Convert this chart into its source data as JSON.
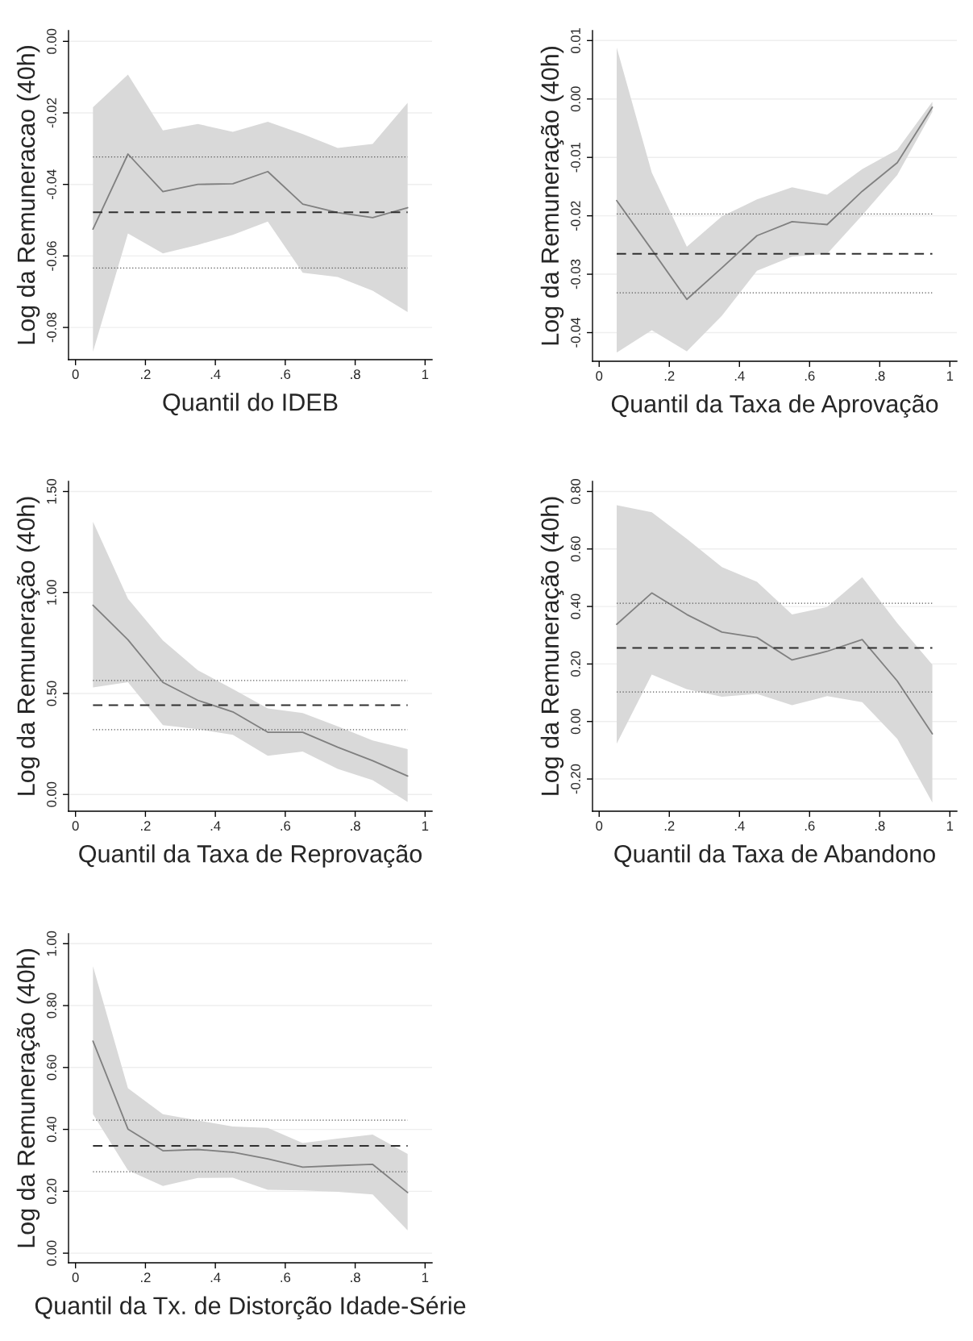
{
  "chart_data": [
    {
      "type": "line",
      "xlabel": "Quantil do IDEB",
      "ylabel": "Log da Remuneracao (40h)",
      "grid": "y",
      "marker": "none",
      "line_style": "solid",
      "x": [
        0.05,
        0.15,
        0.25,
        0.35,
        0.45,
        0.55,
        0.65,
        0.75,
        0.85,
        0.95
      ],
      "series": [
        {
          "color": "#808080",
          "values": [
            -0.0525,
            -0.0315,
            -0.042,
            -0.04,
            -0.0398,
            -0.0364,
            -0.0455,
            -0.0479,
            -0.0493,
            -0.0465
          ],
          "upper": [
            -0.0184,
            -0.0093,
            -0.0249,
            -0.0231,
            -0.0253,
            -0.0225,
            -0.0259,
            -0.0298,
            -0.0287,
            -0.0172
          ],
          "lower": [
            -0.0868,
            -0.0537,
            -0.0593,
            -0.0569,
            -0.0541,
            -0.0504,
            -0.0647,
            -0.0659,
            -0.0697,
            -0.0757
          ]
        }
      ],
      "xlim": [
        -0.02,
        1.02
      ],
      "ylim": [
        -0.089,
        0.003
      ],
      "xticks": [
        0,
        {
          "value": 0.2,
          "label": ".2"
        },
        {
          "value": 0.4,
          "label": ".4"
        },
        {
          "value": 0.6,
          "label": ".6"
        },
        {
          "value": 0.8,
          "label": ".8"
        },
        1
      ],
      "yticks": [
        {
          "value": -0.08,
          "label": "-0.08"
        },
        {
          "value": -0.06,
          "label": "-0.06"
        },
        {
          "value": -0.04,
          "label": "-0.04"
        },
        {
          "value": -0.02,
          "label": "-0.02"
        },
        {
          "value": 0,
          "label": "0.00"
        }
      ],
      "ref_lines": [
        {
          "axis": "y",
          "value": -0.0478,
          "color": "#303030",
          "line_style": "dashed"
        },
        {
          "axis": "y",
          "value": -0.0323,
          "color": "#555555",
          "line_style": "dotted"
        },
        {
          "axis": "y",
          "value": -0.0634,
          "color": "#555555",
          "line_style": "dotted"
        }
      ]
    },
    {
      "type": "line",
      "xlabel": "Quantil da Taxa de Aprovação",
      "ylabel": "Log da Remuneração (40h)",
      "grid": "y",
      "marker": "none",
      "line_style": "solid",
      "x": [
        0.05,
        0.15,
        0.25,
        0.35,
        0.45,
        0.55,
        0.65,
        0.75,
        0.85,
        0.95
      ],
      "series": [
        {
          "color": "#808080",
          "values": [
            -0.0174,
            -0.0258,
            -0.0343,
            -0.0289,
            -0.0234,
            -0.021,
            -0.0215,
            -0.0158,
            -0.0109,
            -0.0014
          ],
          "upper": [
            0.0088,
            -0.0126,
            -0.0253,
            -0.0201,
            -0.0172,
            -0.0151,
            -0.0164,
            -0.012,
            -0.0087,
            -0.0005
          ],
          "lower": [
            -0.0434,
            -0.0396,
            -0.0432,
            -0.0371,
            -0.0294,
            -0.027,
            -0.0265,
            -0.0199,
            -0.013,
            -0.0022
          ]
        }
      ],
      "xlim": [
        -0.019,
        1.02
      ],
      "ylim": [
        -0.0449,
        0.0117
      ],
      "xticks": [
        0,
        {
          "value": 0.2,
          "label": ".2"
        },
        {
          "value": 0.4,
          "label": ".4"
        },
        {
          "value": 0.6,
          "label": ".6"
        },
        {
          "value": 0.8,
          "label": ".8"
        },
        1
      ],
      "yticks": [
        {
          "value": -0.04,
          "label": "-0.04"
        },
        {
          "value": -0.03,
          "label": "-0.03"
        },
        {
          "value": -0.02,
          "label": "-0.02"
        },
        {
          "value": -0.01,
          "label": "-0.01"
        },
        {
          "value": 0,
          "label": "0.00"
        },
        {
          "value": 0.01,
          "label": "0.01"
        }
      ],
      "ref_lines": [
        {
          "axis": "y",
          "value": -0.0265,
          "color": "#303030",
          "line_style": "dashed"
        },
        {
          "axis": "y",
          "value": -0.0197,
          "color": "#555555",
          "line_style": "dotted"
        },
        {
          "axis": "y",
          "value": -0.0332,
          "color": "#555555",
          "line_style": "dotted"
        }
      ]
    },
    {
      "type": "line",
      "xlabel": "Quantil da Taxa de Reprovação",
      "ylabel": "Log da Remuneração (40h)",
      "grid": "y",
      "marker": "none",
      "line_style": "solid",
      "x": [
        0.05,
        0.15,
        0.25,
        0.35,
        0.45,
        0.55,
        0.65,
        0.75,
        0.85,
        0.95
      ],
      "series": [
        {
          "color": "#808080",
          "values": [
            0.937,
            0.766,
            0.555,
            0.466,
            0.409,
            0.308,
            0.308,
            0.234,
            0.167,
            0.091
          ],
          "upper": [
            1.35,
            0.969,
            0.762,
            0.615,
            0.522,
            0.426,
            0.403,
            0.337,
            0.267,
            0.224
          ],
          "lower": [
            0.53,
            0.556,
            0.343,
            0.323,
            0.295,
            0.191,
            0.212,
            0.127,
            0.071,
            -0.037
          ]
        }
      ],
      "xlim": [
        -0.02,
        1.02
      ],
      "ylim": [
        -0.083,
        1.55
      ],
      "xticks": [
        0,
        {
          "value": 0.2,
          "label": ".2"
        },
        {
          "value": 0.4,
          "label": ".4"
        },
        {
          "value": 0.6,
          "label": ".6"
        },
        {
          "value": 0.8,
          "label": ".8"
        },
        1
      ],
      "yticks": [
        {
          "value": 0,
          "label": "0.00"
        },
        {
          "value": 0.5,
          "label": "0.50"
        },
        {
          "value": 1,
          "label": "1.00"
        },
        {
          "value": 1.5,
          "label": "1.50"
        }
      ],
      "ref_lines": [
        {
          "axis": "y",
          "value": 0.442,
          "color": "#303030",
          "line_style": "dashed"
        },
        {
          "axis": "y",
          "value": 0.564,
          "color": "#555555",
          "line_style": "dotted"
        },
        {
          "axis": "y",
          "value": 0.321,
          "color": "#555555",
          "line_style": "dotted"
        }
      ]
    },
    {
      "type": "line",
      "xlabel": "Quantil da Taxa de Abandono",
      "ylabel": "Log da Remuneração (40h)",
      "grid": "y",
      "marker": "none",
      "line_style": "solid",
      "x": [
        0.05,
        0.15,
        0.25,
        0.35,
        0.45,
        0.55,
        0.65,
        0.75,
        0.85,
        0.95
      ],
      "series": [
        {
          "color": "#808080",
          "values": [
            0.338,
            0.447,
            0.372,
            0.311,
            0.292,
            0.214,
            0.244,
            0.285,
            0.141,
            -0.043
          ],
          "upper": [
            0.752,
            0.728,
            0.635,
            0.537,
            0.486,
            0.372,
            0.398,
            0.502,
            0.342,
            0.198
          ],
          "lower": [
            -0.077,
            0.163,
            0.112,
            0.086,
            0.096,
            0.057,
            0.088,
            0.067,
            -0.06,
            -0.282
          ]
        }
      ],
      "xlim": [
        -0.019,
        1.02
      ],
      "ylim": [
        -0.312,
        0.835
      ],
      "xticks": [
        0,
        {
          "value": 0.2,
          "label": ".2"
        },
        {
          "value": 0.4,
          "label": ".4"
        },
        {
          "value": 0.6,
          "label": ".6"
        },
        {
          "value": 0.8,
          "label": ".8"
        },
        1
      ],
      "yticks": [
        {
          "value": -0.2,
          "label": "-0.20"
        },
        {
          "value": 0,
          "label": "0.00"
        },
        {
          "value": 0.2,
          "label": "0.20"
        },
        {
          "value": 0.4,
          "label": "0.40"
        },
        {
          "value": 0.6,
          "label": "0.60"
        },
        {
          "value": 0.8,
          "label": "0.80"
        }
      ],
      "ref_lines": [
        {
          "axis": "y",
          "value": 0.256,
          "color": "#303030",
          "line_style": "dashed"
        },
        {
          "axis": "y",
          "value": 0.411,
          "color": "#555555",
          "line_style": "dotted"
        },
        {
          "axis": "y",
          "value": 0.103,
          "color": "#555555",
          "line_style": "dotted"
        }
      ]
    },
    {
      "type": "line",
      "xlabel": "Quantil da Tx. de Distorção Idade-Série",
      "ylabel": "Log da Remuneração (40h)",
      "grid": "y",
      "marker": "none",
      "line_style": "solid",
      "x": [
        0.05,
        0.15,
        0.25,
        0.35,
        0.45,
        0.55,
        0.65,
        0.75,
        0.85,
        0.95
      ],
      "series": [
        {
          "color": "#808080",
          "values": [
            0.685,
            0.401,
            0.331,
            0.335,
            0.326,
            0.305,
            0.278,
            0.283,
            0.287,
            0.196
          ],
          "upper": [
            0.927,
            0.533,
            0.449,
            0.429,
            0.409,
            0.405,
            0.356,
            0.37,
            0.383,
            0.321
          ],
          "lower": [
            0.449,
            0.268,
            0.217,
            0.243,
            0.244,
            0.205,
            0.203,
            0.198,
            0.19,
            0.074
          ]
        }
      ],
      "xlim": [
        -0.02,
        1.02
      ],
      "ylim": [
        -0.031,
        1.032
      ],
      "xticks": [
        0,
        {
          "value": 0.2,
          "label": ".2"
        },
        {
          "value": 0.4,
          "label": ".4"
        },
        {
          "value": 0.6,
          "label": ".6"
        },
        {
          "value": 0.8,
          "label": ".8"
        },
        1
      ],
      "yticks": [
        {
          "value": 0,
          "label": "0.00"
        },
        {
          "value": 0.2,
          "label": "0.20"
        },
        {
          "value": 0.4,
          "label": "0.40"
        },
        {
          "value": 0.6,
          "label": "0.60"
        },
        {
          "value": 0.8,
          "label": "0.80"
        },
        {
          "value": 1,
          "label": "1.00"
        }
      ],
      "ref_lines": [
        {
          "axis": "y",
          "value": 0.347,
          "color": "#303030",
          "line_style": "dashed"
        },
        {
          "axis": "y",
          "value": 0.43,
          "color": "#555555",
          "line_style": "dotted"
        },
        {
          "axis": "y",
          "value": 0.263,
          "color": "#555555",
          "line_style": "dotted"
        }
      ]
    }
  ]
}
